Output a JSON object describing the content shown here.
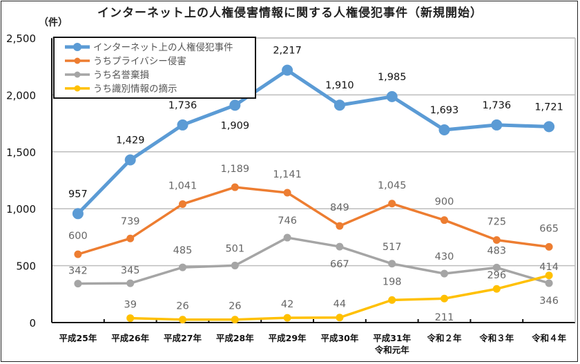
{
  "chart_data": {
    "type": "line",
    "title": "インターネット上の人権侵害情報に関する人権侵犯事件（新規開始）",
    "unit_label": "（件）",
    "xlabel": "",
    "ylabel": "（件）",
    "ylim": [
      0,
      2500
    ],
    "yticks": [
      0,
      500,
      1000,
      1500,
      2000,
      2500
    ],
    "ytick_labels": [
      "0",
      "500",
      "1,000",
      "1,500",
      "2,000",
      "2,500"
    ],
    "grid": true,
    "legend_position": "top-left",
    "categories": [
      "平成25年",
      "平成26年",
      "平成27年",
      "平成28年",
      "平成29年",
      "平成30年",
      "平成31年\n令和元年",
      "令和２年",
      "令和３年",
      "令和４年"
    ],
    "series": [
      {
        "name": "インターネット上の人権侵犯事件",
        "color": "#5B9BD5",
        "label_color": "#111111",
        "values": [
          957,
          1429,
          1736,
          1909,
          2217,
          1910,
          1985,
          1693,
          1736,
          1721
        ],
        "labels": [
          "957",
          "1,429",
          "1,736",
          "1,909",
          "2,217",
          "1,910",
          "1,985",
          "1,693",
          "1,736",
          "1,721"
        ]
      },
      {
        "name": "うちプライバシー侵害",
        "color": "#ED7D31",
        "label_color": "#666666",
        "values": [
          600,
          739,
          1041,
          1189,
          1141,
          849,
          1045,
          900,
          725,
          665
        ],
        "labels": [
          "600",
          "739",
          "1,041",
          "1,189",
          "1,141",
          "849",
          "1,045",
          "900",
          "725",
          "665"
        ]
      },
      {
        "name": "うち名誉棄損",
        "color": "#A5A5A5",
        "label_color": "#666666",
        "values": [
          342,
          345,
          485,
          501,
          746,
          667,
          517,
          430,
          483,
          346
        ],
        "labels": [
          "342",
          "345",
          "485",
          "501",
          "746",
          "667",
          "517",
          "430",
          "483",
          "346"
        ]
      },
      {
        "name": "うち識別情報の摘示",
        "color": "#FFC000",
        "label_color": "#666666",
        "values": [
          null,
          39,
          26,
          26,
          42,
          44,
          198,
          211,
          296,
          414
        ],
        "labels": [
          null,
          "39",
          "26",
          "26",
          "42",
          "44",
          "198",
          "211",
          "296",
          "414"
        ]
      }
    ]
  }
}
